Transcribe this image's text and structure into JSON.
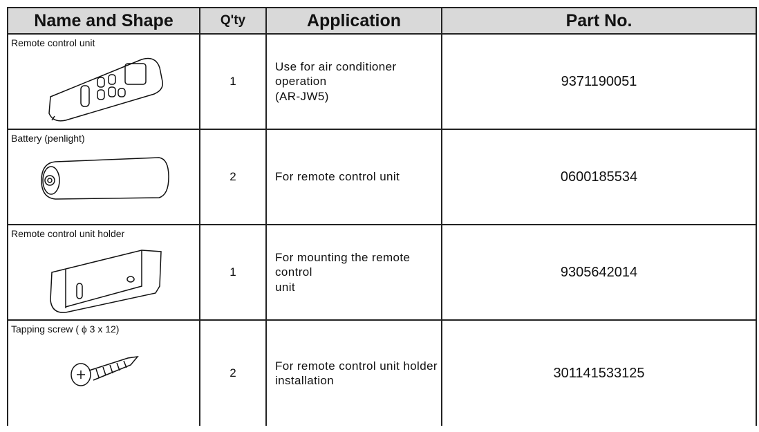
{
  "header": {
    "name": "Name and Shape",
    "qty": "Q'ty",
    "application": "Application",
    "part_no": "Part No."
  },
  "rows": [
    {
      "name": "Remote control unit",
      "qty": 1,
      "application": "Use for air conditioner operation\n(AR-JW5)",
      "part_no": "9371190051"
    },
    {
      "name": "Battery (penlight)",
      "qty": 2,
      "application": "For remote control unit",
      "part_no": "0600185534"
    },
    {
      "name": "Remote control unit holder",
      "qty": 1,
      "application": "For mounting the remote control\nunit",
      "part_no": "9305642014"
    },
    {
      "name": "Tapping screw ( ϕ 3 x 12)",
      "qty": 2,
      "application": "For remote control unit holder\ninstallation",
      "part_no": "301141533125"
    }
  ]
}
